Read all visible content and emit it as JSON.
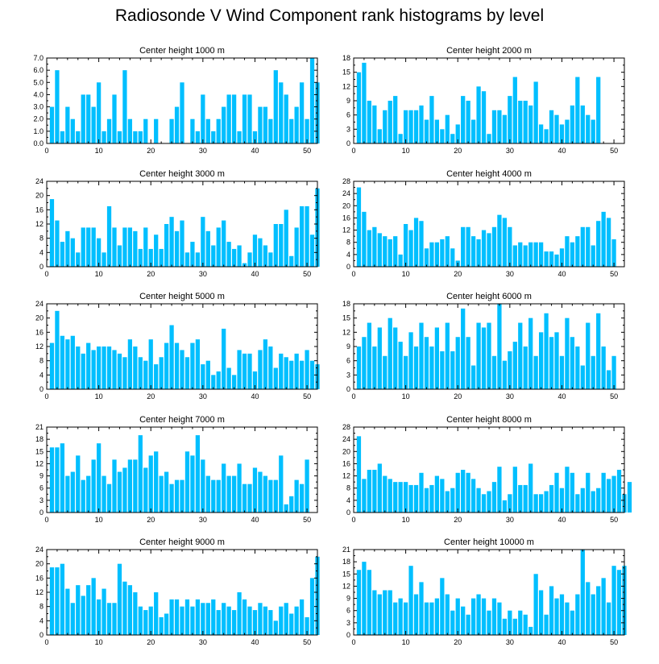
{
  "title": "Radiosonde V Wind Component rank histograms by level",
  "bar_color": "#00bfff",
  "chart_data": [
    {
      "type": "bar",
      "title": "Center height 1000 m",
      "ylim": [
        0,
        7
      ],
      "yticks": [
        0,
        1,
        2,
        3,
        4,
        5,
        6,
        7
      ],
      "ytick_labels": [
        "0.0",
        "1.0",
        "2.0",
        "3.0",
        "4.0",
        "5.0",
        "6.0",
        "7.0"
      ],
      "xticks": [
        0,
        10,
        20,
        30,
        40,
        50
      ],
      "values": [
        3,
        6,
        1,
        3,
        2,
        1,
        4,
        4,
        3,
        5,
        1,
        2,
        4,
        1,
        6,
        2,
        1,
        1,
        2,
        0,
        2,
        0,
        0,
        2,
        3,
        5,
        0,
        2,
        1,
        4,
        2,
        1,
        2,
        3,
        4,
        4,
        1,
        4,
        4,
        1,
        3,
        3,
        2,
        6,
        5,
        4,
        2,
        3,
        5,
        2,
        7,
        5
      ]
    },
    {
      "type": "bar",
      "title": "Center height 2000 m",
      "ylim": [
        0,
        18
      ],
      "yticks": [
        0,
        3,
        6,
        9,
        12,
        15,
        18
      ],
      "ytick_labels": [
        "0",
        "3",
        "6",
        "9",
        "12",
        "15",
        "18"
      ],
      "xticks": [
        0,
        10,
        20,
        30,
        40,
        50
      ],
      "values": [
        15,
        17,
        9,
        8,
        3,
        7,
        9,
        10,
        2,
        7,
        7,
        7,
        8,
        5,
        10,
        5,
        3,
        6,
        2,
        4,
        10,
        9,
        5,
        12,
        11,
        2,
        7,
        7,
        6,
        10,
        14,
        9,
        9,
        8,
        13,
        4,
        3,
        7,
        6,
        4,
        5,
        8,
        14,
        8,
        6,
        5,
        14
      ]
    },
    {
      "type": "bar",
      "title": "Center height 3000 m",
      "ylim": [
        0,
        24
      ],
      "yticks": [
        0,
        4,
        8,
        12,
        16,
        20,
        24
      ],
      "ytick_labels": [
        "0",
        "4",
        "8",
        "12",
        "16",
        "20",
        "24"
      ],
      "xticks": [
        0,
        10,
        20,
        30,
        40,
        50
      ],
      "values": [
        19,
        13,
        7,
        10,
        8,
        4,
        11,
        11,
        11,
        8,
        4,
        17,
        11,
        6,
        11,
        11,
        10,
        5,
        11,
        5,
        9,
        5,
        12,
        14,
        10,
        13,
        4,
        7,
        4,
        14,
        10,
        6,
        11,
        13,
        7,
        5,
        6,
        1,
        4,
        9,
        8,
        6,
        4,
        12,
        12,
        16,
        3,
        11,
        17,
        17,
        9,
        22
      ]
    },
    {
      "type": "bar",
      "title": "Center height 4000 m",
      "ylim": [
        0,
        28
      ],
      "yticks": [
        0,
        4,
        8,
        12,
        16,
        20,
        24,
        28
      ],
      "ytick_labels": [
        "0",
        "4",
        "8",
        "12",
        "16",
        "20",
        "24",
        "28"
      ],
      "xticks": [
        0,
        10,
        20,
        30,
        40,
        50
      ],
      "values": [
        26,
        18,
        12,
        13,
        11,
        10,
        9,
        10,
        4,
        14,
        12,
        16,
        15,
        6,
        8,
        8,
        9,
        10,
        6,
        2,
        13,
        13,
        10,
        9,
        12,
        11,
        13,
        17,
        16,
        13,
        7,
        8,
        7,
        8,
        8,
        8,
        5,
        5,
        4,
        6,
        10,
        8,
        10,
        13,
        13,
        7,
        15,
        18,
        16,
        9
      ]
    },
    {
      "type": "bar",
      "title": "Center height 5000 m",
      "ylim": [
        0,
        24
      ],
      "yticks": [
        0,
        4,
        8,
        12,
        16,
        20,
        24
      ],
      "ytick_labels": [
        "0",
        "4",
        "8",
        "12",
        "16",
        "20",
        "24"
      ],
      "xticks": [
        0,
        10,
        20,
        30,
        40,
        50
      ],
      "values": [
        13,
        22,
        15,
        14,
        15,
        12,
        10,
        13,
        11,
        12,
        12,
        12,
        11,
        10,
        9,
        14,
        12,
        9,
        8,
        14,
        7,
        9,
        13,
        18,
        13,
        11,
        9,
        13,
        14,
        7,
        8,
        4,
        5,
        17,
        6,
        4,
        11,
        10,
        10,
        5,
        11,
        14,
        12,
        6,
        10,
        9,
        8,
        10,
        8,
        11,
        8,
        7
      ]
    },
    {
      "type": "bar",
      "title": "Center height 6000 m",
      "ylim": [
        0,
        18
      ],
      "yticks": [
        0,
        3,
        6,
        9,
        12,
        15,
        18
      ],
      "ytick_labels": [
        "0",
        "3",
        "6",
        "9",
        "12",
        "15",
        "18"
      ],
      "xticks": [
        0,
        10,
        20,
        30,
        40,
        50
      ],
      "values": [
        9,
        11,
        14,
        9,
        13,
        7,
        15,
        13,
        10,
        7,
        12,
        9,
        14,
        11,
        9,
        13,
        8,
        14,
        8,
        11,
        17,
        11,
        5,
        14,
        13,
        14,
        7,
        18,
        6,
        8,
        10,
        14,
        9,
        15,
        7,
        12,
        16,
        11,
        12,
        7,
        15,
        11,
        9,
        5,
        14,
        7,
        16,
        9,
        4,
        7
      ]
    },
    {
      "type": "bar",
      "title": "Center height 7000 m",
      "ylim": [
        0,
        21
      ],
      "yticks": [
        0,
        3,
        6,
        9,
        12,
        15,
        18,
        21
      ],
      "ytick_labels": [
        "0",
        "3",
        "6",
        "9",
        "12",
        "15",
        "18",
        "21"
      ],
      "xticks": [
        0,
        10,
        20,
        30,
        40,
        50
      ],
      "values": [
        16,
        16,
        17,
        9,
        10,
        14,
        8,
        9,
        13,
        17,
        9,
        7,
        13,
        10,
        11,
        13,
        13,
        19,
        11,
        14,
        15,
        9,
        10,
        7,
        8,
        8,
        15,
        14,
        19,
        13,
        9,
        8,
        8,
        12,
        9,
        9,
        12,
        7,
        7,
        11,
        10,
        9,
        8,
        8,
        14,
        2,
        4,
        8,
        7,
        13
      ]
    },
    {
      "type": "bar",
      "title": "Center height 8000 m",
      "ylim": [
        0,
        28
      ],
      "yticks": [
        0,
        4,
        8,
        12,
        16,
        20,
        24,
        28
      ],
      "ytick_labels": [
        "0",
        "4",
        "8",
        "12",
        "16",
        "20",
        "24",
        "28"
      ],
      "xticks": [
        0,
        10,
        20,
        30,
        40,
        50
      ],
      "values": [
        25,
        11,
        14,
        14,
        16,
        12,
        11,
        10,
        10,
        10,
        9,
        9,
        13,
        8,
        9,
        12,
        11,
        7,
        8,
        13,
        14,
        13,
        11,
        8,
        6,
        7,
        10,
        15,
        4,
        6,
        15,
        9,
        9,
        16,
        6,
        6,
        7,
        9,
        13,
        8,
        15,
        13,
        6,
        8,
        13,
        7,
        8,
        13,
        11,
        12,
        14,
        6,
        10
      ]
    },
    {
      "type": "bar",
      "title": "Center height 9000 m",
      "ylim": [
        0,
        24
      ],
      "yticks": [
        0,
        4,
        8,
        12,
        16,
        20,
        24
      ],
      "ytick_labels": [
        "0",
        "4",
        "8",
        "12",
        "16",
        "20",
        "24"
      ],
      "xticks": [
        0,
        10,
        20,
        30,
        40,
        50
      ],
      "values": [
        19,
        19,
        20,
        13,
        9,
        14,
        11,
        14,
        16,
        10,
        13,
        9,
        9,
        20,
        15,
        14,
        12,
        8,
        7,
        8,
        12,
        5,
        6,
        10,
        10,
        8,
        10,
        8,
        10,
        9,
        9,
        10,
        7,
        9,
        8,
        7,
        12,
        10,
        8,
        7,
        9,
        8,
        7,
        4,
        8,
        9,
        6,
        8,
        10,
        5,
        16,
        22
      ]
    },
    {
      "type": "bar",
      "title": "Center height 10000 m",
      "ylim": [
        0,
        21
      ],
      "yticks": [
        0,
        3,
        6,
        9,
        12,
        15,
        18,
        21
      ],
      "ytick_labels": [
        "0",
        "3",
        "6",
        "9",
        "12",
        "15",
        "18",
        "21"
      ],
      "xticks": [
        0,
        10,
        20,
        30,
        40,
        50
      ],
      "values": [
        16,
        18,
        16,
        11,
        10,
        11,
        11,
        8,
        9,
        8,
        17,
        10,
        13,
        8,
        8,
        9,
        14,
        10,
        6,
        9,
        7,
        5,
        9,
        10,
        9,
        6,
        9,
        8,
        4,
        6,
        4,
        6,
        5,
        2,
        15,
        11,
        5,
        12,
        9,
        10,
        8,
        6,
        10,
        21,
        13,
        10,
        12,
        14,
        8,
        17,
        16,
        17
      ]
    }
  ]
}
